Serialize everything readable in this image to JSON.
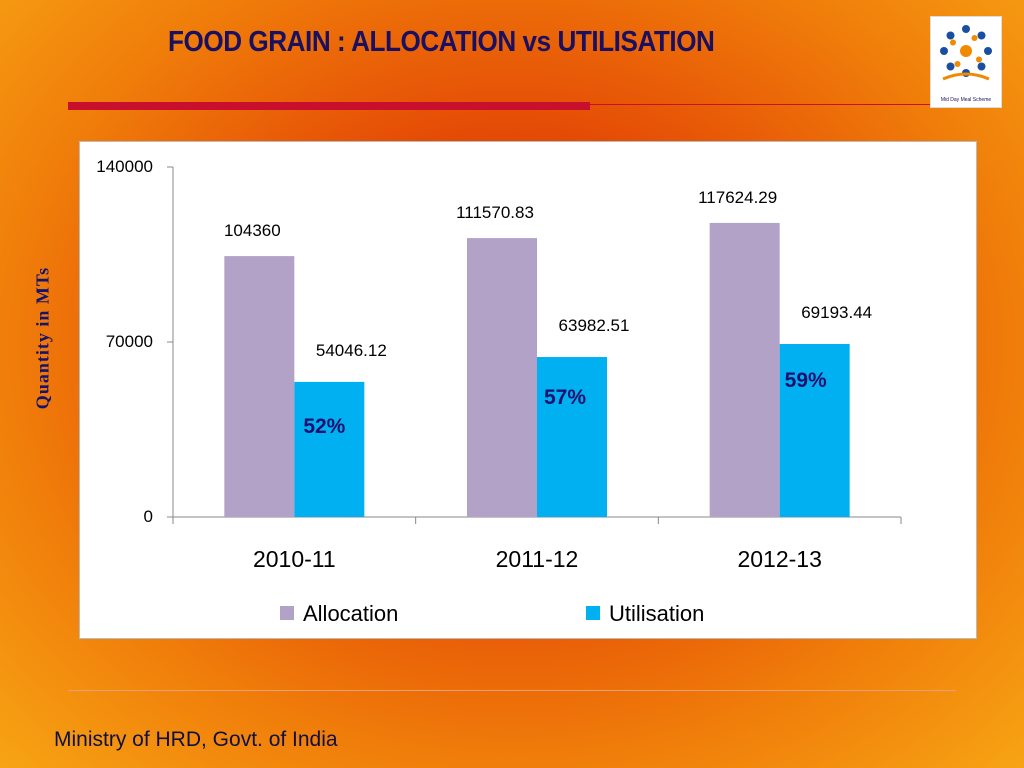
{
  "slide": {
    "title": "FOOD GRAIN : ALLOCATION vs UTILISATION",
    "footer": "Ministry of HRD, Govt. of India",
    "logo_text": "Mid Day Meal Scheme"
  },
  "chart_data": {
    "type": "bar",
    "title": "",
    "xlabel": "",
    "ylabel": "Quantity in MTs",
    "categories": [
      "2010-11",
      "2011-12",
      "2012-13"
    ],
    "series": [
      {
        "name": "Allocation",
        "values": [
          104360,
          111570.83,
          117624.29
        ],
        "labels": [
          "104360",
          "111570.83",
          "117624.29"
        ],
        "color": "#b3a2c7"
      },
      {
        "name": "Utilisation",
        "values": [
          54046.12,
          63982.51,
          69193.44
        ],
        "labels": [
          "54046.12",
          "63982.51",
          "69193.44"
        ],
        "color": "#00b0f0"
      }
    ],
    "annotations": [
      "52%",
      "57%",
      "59%"
    ],
    "annotation_color": "#1a1070",
    "ylim": [
      0,
      140000
    ],
    "yticks": [
      "0",
      "70000",
      "140000"
    ],
    "grid": false,
    "legend": "bottom"
  }
}
